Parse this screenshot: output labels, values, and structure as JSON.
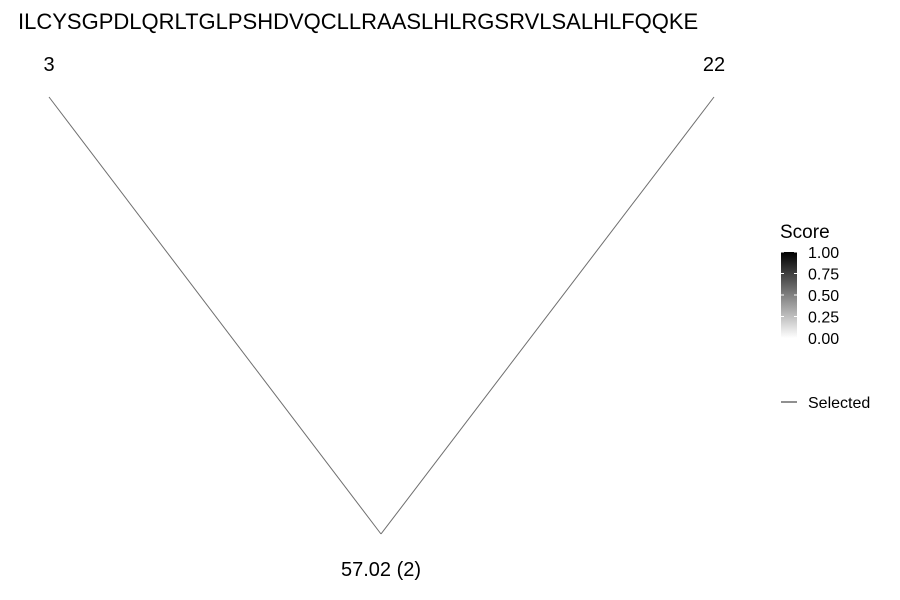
{
  "chart_data": {
    "type": "tree",
    "title": "ILCYSGPDLQRLTGLPSHDVQCLLRAASLHLRGSRVLSALHLFQQKE",
    "nodes": [
      {
        "id": "left_leaf",
        "label": "3"
      },
      {
        "id": "right_leaf",
        "label": "22"
      },
      {
        "id": "root",
        "label": "57.02 (2)"
      }
    ],
    "edges": [
      {
        "from": "root",
        "to": "left_leaf",
        "selected": true
      },
      {
        "from": "root",
        "to": "right_leaf",
        "selected": true
      }
    ],
    "legend": {
      "placement": "right",
      "score": {
        "title": "Score",
        "range": [
          0,
          1
        ],
        "ticks": [
          "1.00",
          "0.75",
          "0.50",
          "0.25",
          "0.00"
        ],
        "color_low": "#ffffff",
        "color_high": "#000000"
      },
      "line_item": {
        "label": "Selected",
        "color": "#555555"
      }
    },
    "edge_color": "#6e6e6e"
  }
}
